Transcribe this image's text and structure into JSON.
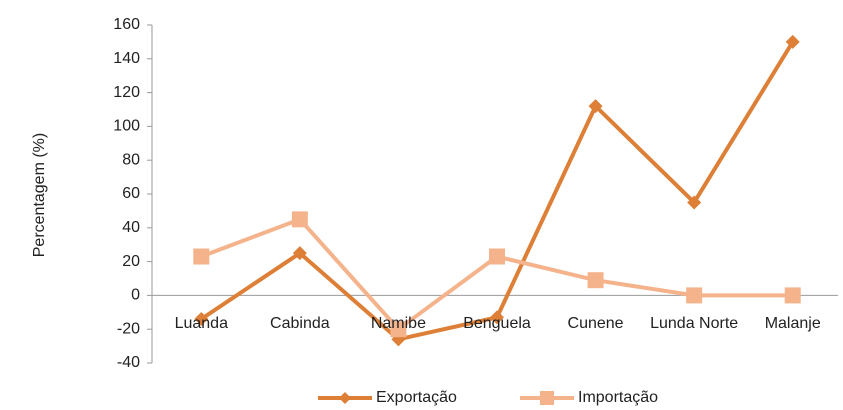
{
  "chart_data": {
    "type": "line",
    "y_label": "Percentagem (%)",
    "categories": [
      "Luanda",
      "Cabinda",
      "Namibe",
      "Benguela",
      "Cunene",
      "Lunda Norte",
      "Malanje"
    ],
    "series": [
      {
        "name": "Exportação",
        "color": "#dd7f36",
        "values": [
          -14,
          25,
          -26,
          -13,
          112,
          55,
          150
        ]
      },
      {
        "name": "Importação",
        "color": "#f5b38c",
        "values": [
          23,
          45,
          -20,
          23,
          9,
          0,
          0
        ]
      }
    ],
    "ylim": [
      -40,
      160
    ],
    "yticks": [
      -40,
      -20,
      0,
      20,
      40,
      60,
      80,
      100,
      120,
      140,
      160
    ],
    "grid": false,
    "legend": "bottom"
  }
}
